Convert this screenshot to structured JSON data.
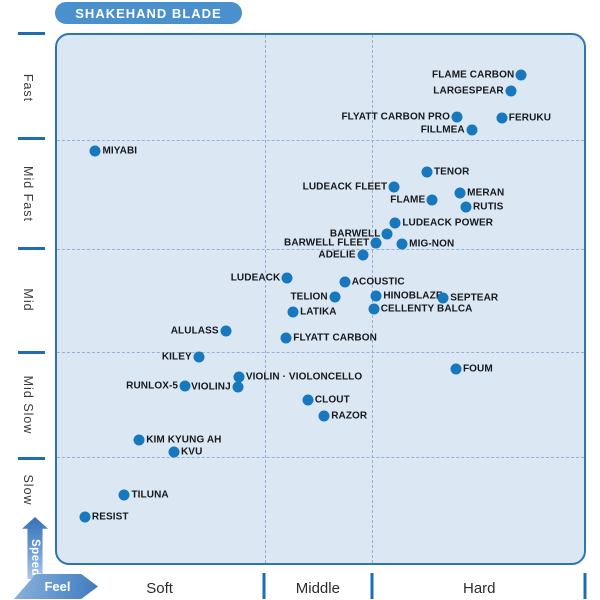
{
  "header": {
    "title": "SHAKEHAND BLADE"
  },
  "colors": {
    "pill_blue": "#4a90cd",
    "plot_background": "#dce7f4",
    "plot_border": "#2e75b6",
    "dot_blue": "#1778be",
    "tick_blue": "#1d6db4",
    "gridline_blue": "#94b2d6",
    "label_text": "#15181c"
  },
  "chart_data": {
    "type": "scatter",
    "title": "SHAKEHAND BLADE",
    "grid": "dashed",
    "x_axis": {
      "label": "Feel",
      "categories": [
        "Soft",
        "Middle",
        "Hard"
      ],
      "category_centers_pct": [
        19.7,
        49.5,
        79.9
      ],
      "dividers_pct": [
        39.4,
        59.7
      ],
      "end_tick_pct": 99.8
    },
    "y_axis": {
      "label": "Speed",
      "categories": [
        "Fast",
        "Mid Fast",
        "Mid",
        "Mid Slow",
        "Slow"
      ],
      "category_centers_pct": [
        10.3,
        30.3,
        50.2,
        69.9,
        85.9
      ],
      "dividers_pct": [
        19.9,
        40.6,
        60.0,
        79.9
      ]
    },
    "points": [
      {
        "name": "FLAME CARBON",
        "x_pct": 88.1,
        "y_pct": 7.5,
        "label_side": "left",
        "feel": "Hard",
        "speed": "Fast"
      },
      {
        "name": "LARGESPEAR",
        "x_pct": 86.1,
        "y_pct": 10.7,
        "label_side": "left",
        "feel": "Hard",
        "speed": "Fast"
      },
      {
        "name": "FLYATT CARBON PRO",
        "x_pct": 75.9,
        "y_pct": 15.6,
        "label_side": "left",
        "feel": "Hard",
        "speed": "Fast"
      },
      {
        "name": "FERUKU",
        "x_pct": 84.4,
        "y_pct": 15.8,
        "label_side": "right",
        "feel": "Hard",
        "speed": "Fast"
      },
      {
        "name": "FILLMEA",
        "x_pct": 78.7,
        "y_pct": 18.0,
        "label_side": "left",
        "feel": "Hard",
        "speed": "Fast"
      },
      {
        "name": "MIYABI",
        "x_pct": 7.3,
        "y_pct": 22.0,
        "label_side": "right",
        "feel": "Soft",
        "speed": "Mid Fast"
      },
      {
        "name": "TENOR",
        "x_pct": 70.2,
        "y_pct": 25.9,
        "label_side": "right",
        "feel": "Hard",
        "speed": "Mid Fast"
      },
      {
        "name": "LUDEACK FLEET",
        "x_pct": 64.0,
        "y_pct": 28.8,
        "label_side": "left",
        "feel": "Hard",
        "speed": "Mid Fast"
      },
      {
        "name": "MERAN",
        "x_pct": 76.5,
        "y_pct": 29.9,
        "label_side": "right",
        "feel": "Hard",
        "speed": "Mid Fast"
      },
      {
        "name": "FLAME",
        "x_pct": 71.2,
        "y_pct": 31.2,
        "label_side": "left",
        "feel": "Hard",
        "speed": "Mid Fast"
      },
      {
        "name": "RUTIS",
        "x_pct": 77.6,
        "y_pct": 32.5,
        "label_side": "right",
        "feel": "Hard",
        "speed": "Mid Fast"
      },
      {
        "name": "LUDEACK POWER",
        "x_pct": 64.2,
        "y_pct": 35.7,
        "label_side": "right",
        "feel": "Hard",
        "speed": "Mid Fast"
      },
      {
        "name": "BARWELL",
        "x_pct": 62.7,
        "y_pct": 37.6,
        "label_side": "left",
        "feel": "Hard",
        "speed": "Mid Fast"
      },
      {
        "name": "BARWELL FLEET",
        "x_pct": 60.6,
        "y_pct": 39.3,
        "label_side": "left",
        "feel": "Hard",
        "speed": "Mid Fast"
      },
      {
        "name": "MIG-NON",
        "x_pct": 65.5,
        "y_pct": 39.5,
        "label_side": "right",
        "feel": "Hard",
        "speed": "Mid Fast"
      },
      {
        "name": "ADELIE",
        "x_pct": 58.0,
        "y_pct": 41.7,
        "label_side": "left",
        "feel": "Middle",
        "speed": "Mid"
      },
      {
        "name": "LUDEACK",
        "x_pct": 43.7,
        "y_pct": 46.1,
        "label_side": "left",
        "feel": "Middle",
        "speed": "Mid"
      },
      {
        "name": "ACOUSTIC",
        "x_pct": 54.6,
        "y_pct": 46.8,
        "label_side": "right",
        "feel": "Middle",
        "speed": "Mid"
      },
      {
        "name": "HINOBLAZE",
        "x_pct": 60.6,
        "y_pct": 49.4,
        "label_side": "right",
        "feel": "Hard",
        "speed": "Mid"
      },
      {
        "name": "TELION",
        "x_pct": 52.7,
        "y_pct": 49.6,
        "label_side": "left",
        "feel": "Middle",
        "speed": "Mid"
      },
      {
        "name": "SEPTEAR",
        "x_pct": 73.3,
        "y_pct": 49.8,
        "label_side": "right",
        "feel": "Hard",
        "speed": "Mid"
      },
      {
        "name": "CELLENTY BALCA",
        "x_pct": 60.1,
        "y_pct": 51.9,
        "label_side": "right",
        "feel": "Hard",
        "speed": "Mid"
      },
      {
        "name": "LATIKA",
        "x_pct": 44.8,
        "y_pct": 52.4,
        "label_side": "right",
        "feel": "Middle",
        "speed": "Mid"
      },
      {
        "name": "ALULASS",
        "x_pct": 32.0,
        "y_pct": 56.0,
        "label_side": "left",
        "feel": "Soft",
        "speed": "Mid"
      },
      {
        "name": "FLYATT CARBON",
        "x_pct": 43.5,
        "y_pct": 57.3,
        "label_side": "right",
        "feel": "Middle",
        "speed": "Mid"
      },
      {
        "name": "KILEY",
        "x_pct": 26.9,
        "y_pct": 60.9,
        "label_side": "left",
        "feel": "Soft",
        "speed": "Mid Slow"
      },
      {
        "name": "FOUM",
        "x_pct": 75.7,
        "y_pct": 63.3,
        "label_side": "right",
        "feel": "Hard",
        "speed": "Mid Slow"
      },
      {
        "name": "VIOLIN · VIOLONCELLO",
        "x_pct": 34.5,
        "y_pct": 64.7,
        "label_side": "right",
        "feel": "Soft",
        "speed": "Mid Slow"
      },
      {
        "name": "RUNLOX-5",
        "x_pct": 24.3,
        "y_pct": 66.5,
        "label_side": "left",
        "feel": "Soft",
        "speed": "Mid Slow"
      },
      {
        "name": "VIOLINJ",
        "x_pct": 34.3,
        "y_pct": 66.7,
        "label_side": "left",
        "feel": "Soft",
        "speed": "Mid Slow"
      },
      {
        "name": "CLOUT",
        "x_pct": 47.6,
        "y_pct": 69.2,
        "label_side": "right",
        "feel": "Middle",
        "speed": "Mid Slow"
      },
      {
        "name": "RAZOR",
        "x_pct": 50.7,
        "y_pct": 72.2,
        "label_side": "right",
        "feel": "Middle",
        "speed": "Mid Slow"
      },
      {
        "name": "KIM KYUNG AH",
        "x_pct": 15.6,
        "y_pct": 76.7,
        "label_side": "right",
        "feel": "Soft",
        "speed": "Mid Slow"
      },
      {
        "name": "KVU",
        "x_pct": 22.2,
        "y_pct": 78.9,
        "label_side": "right",
        "feel": "Soft",
        "speed": "Mid Slow"
      },
      {
        "name": "TILUNA",
        "x_pct": 12.8,
        "y_pct": 87.2,
        "label_side": "right",
        "feel": "Soft",
        "speed": "Slow"
      },
      {
        "name": "RESIST",
        "x_pct": 5.3,
        "y_pct": 91.2,
        "label_side": "right",
        "feel": "Soft",
        "speed": "Slow"
      }
    ]
  }
}
